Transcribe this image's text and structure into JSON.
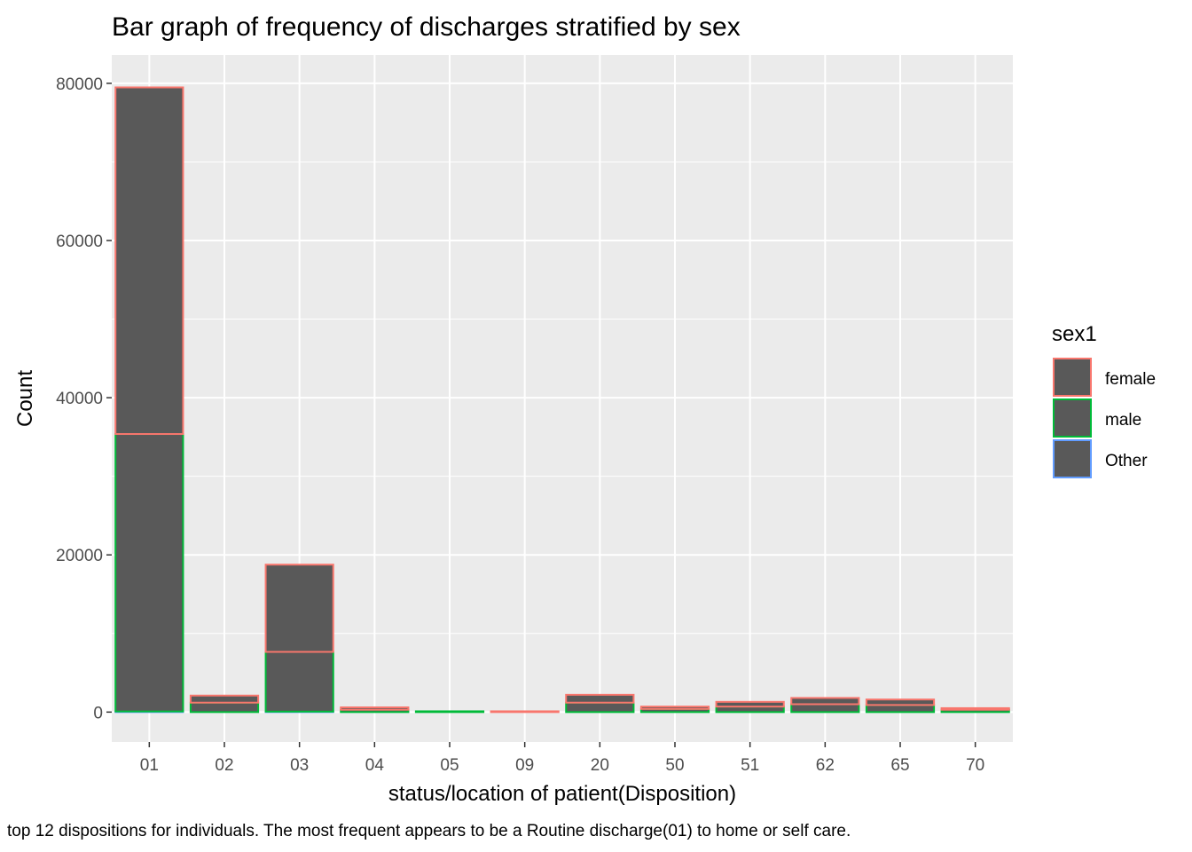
{
  "chart_data": {
    "type": "bar",
    "stacked": true,
    "title": "Bar graph of frequency of discharges stratified by sex",
    "xlabel": "status/location of patient(Disposition)",
    "ylabel": "Count",
    "caption": "top 12 dispositions for individuals. The most frequent appears to be a Routine discharge(01) to home or self care.",
    "categories": [
      "01",
      "02",
      "03",
      "04",
      "05",
      "09",
      "20",
      "50",
      "51",
      "62",
      "65",
      "70"
    ],
    "yticks": [
      0,
      20000,
      40000,
      60000,
      80000
    ],
    "yticklabels": [
      "0",
      "20000",
      "40000",
      "60000",
      "80000"
    ],
    "ylim": [
      -3800,
      83600
    ],
    "grid": true,
    "fill_color": "#595959",
    "panel_background": "#ebebeb",
    "legend": {
      "title": "sex1",
      "position": "right"
    },
    "series": [
      {
        "name": "Other",
        "color": "#619CFF",
        "values": [
          80,
          0,
          60,
          0,
          0,
          0,
          0,
          0,
          0,
          0,
          0,
          0
        ]
      },
      {
        "name": "male",
        "color": "#00BA38",
        "values": [
          35300,
          1200,
          7600,
          300,
          100,
          0,
          1200,
          400,
          700,
          1000,
          900,
          300
        ]
      },
      {
        "name": "female",
        "color": "#F8766D",
        "values": [
          44100,
          900,
          11100,
          300,
          0,
          100,
          1000,
          300,
          600,
          800,
          700,
          200
        ]
      }
    ],
    "legend_order": [
      "female",
      "male",
      "Other"
    ]
  }
}
